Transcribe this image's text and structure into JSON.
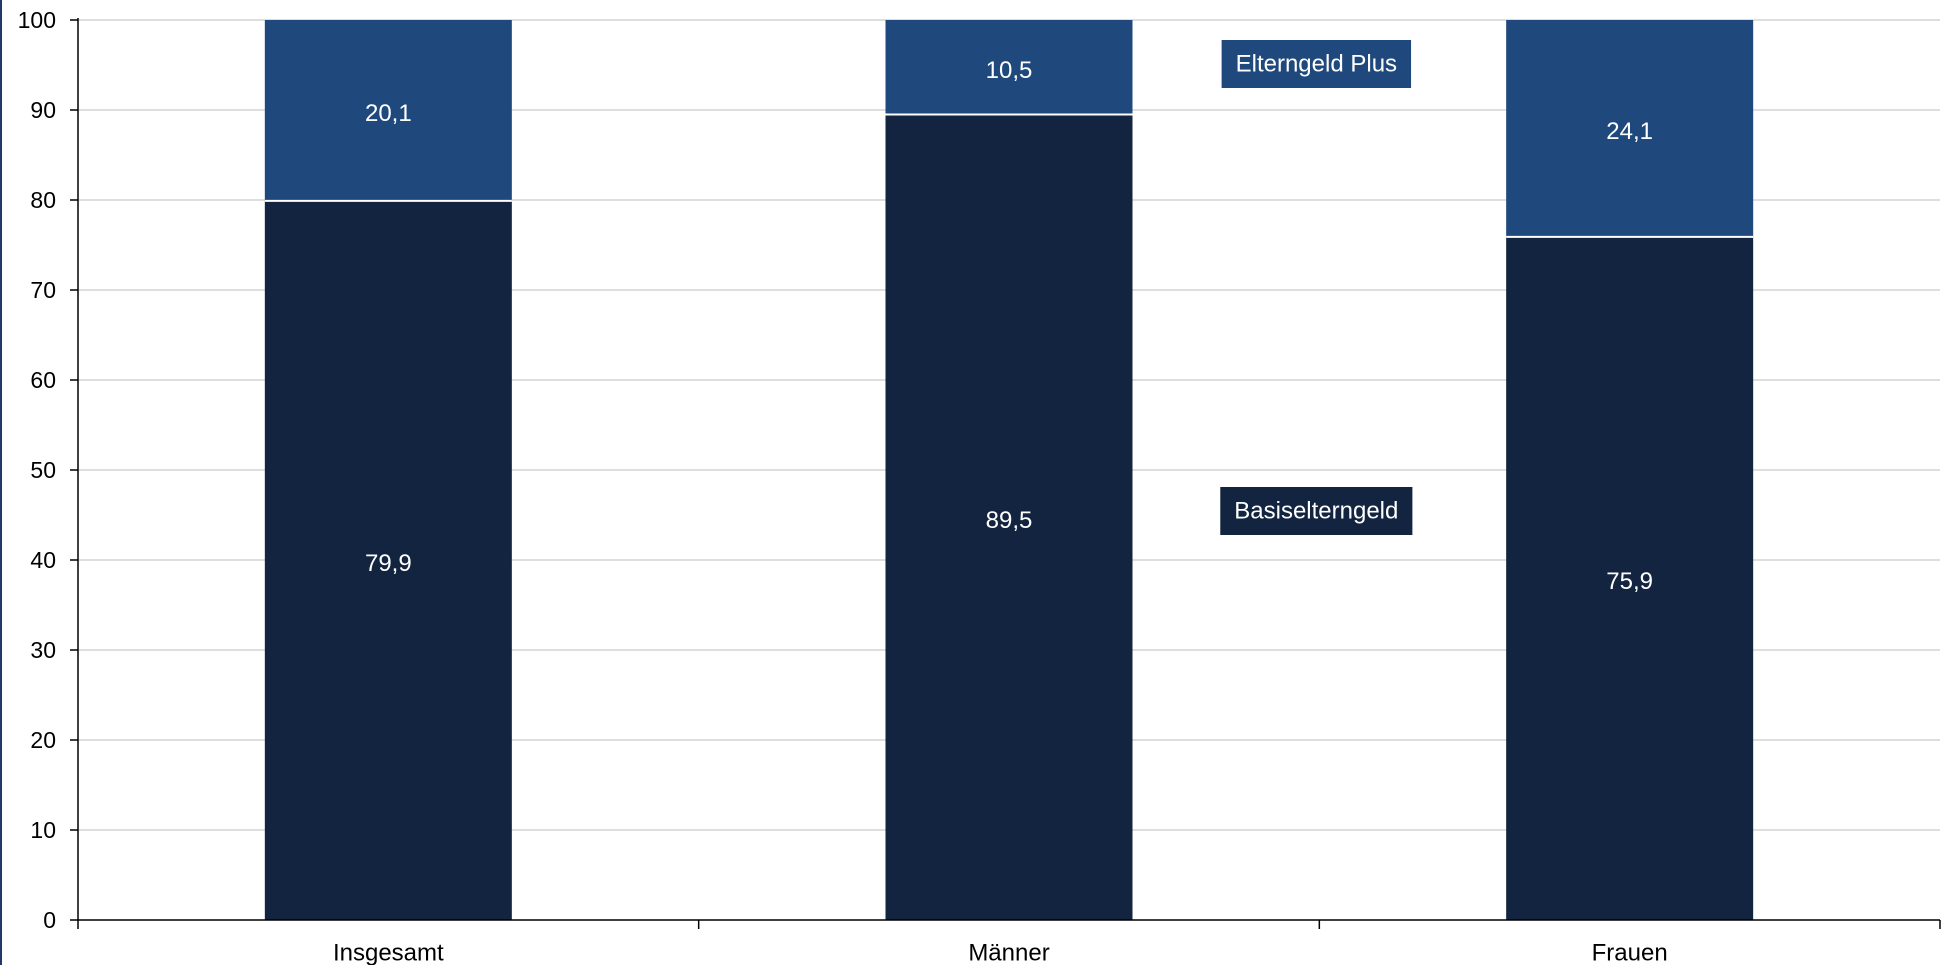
{
  "chart_data": {
    "type": "bar",
    "stacked": true,
    "categories": [
      "Insgesamt",
      "Männer",
      "Frauen"
    ],
    "series": [
      {
        "name": "Basiselterngeld",
        "values": [
          79.9,
          89.5,
          75.9
        ],
        "labels": [
          "79,9",
          "89,5",
          "75,9"
        ],
        "color": "#12243f"
      },
      {
        "name": "Elterngeld Plus",
        "values": [
          20.1,
          10.5,
          24.1
        ],
        "labels": [
          "20,1",
          "10,5",
          "24,1"
        ],
        "color": "#1f497d"
      }
    ],
    "ylim": [
      0,
      100
    ],
    "yticks": [
      0,
      10,
      20,
      30,
      40,
      50,
      60,
      70,
      80,
      90,
      100
    ],
    "grid": true,
    "legend": "inline labels between bars"
  }
}
